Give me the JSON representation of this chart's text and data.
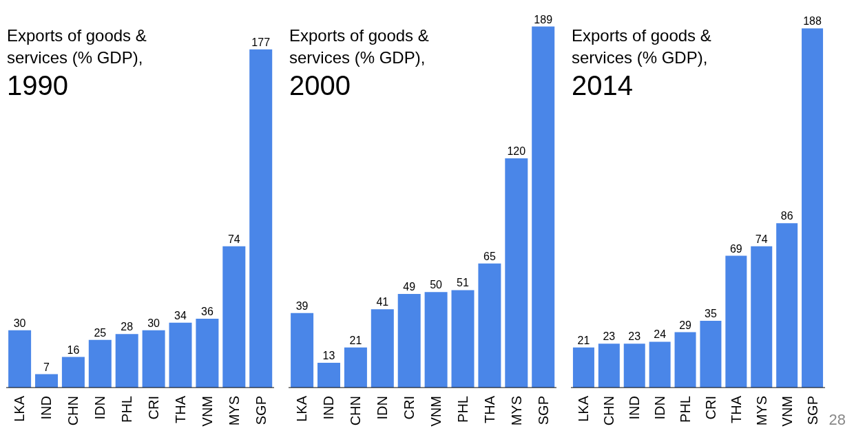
{
  "chart_data": [
    {
      "type": "bar",
      "title": "Exports of goods & services (% GDP),",
      "subtitle": "1990",
      "categories": [
        "LKA",
        "IND",
        "CHN",
        "IDN",
        "PHL",
        "CRI",
        "THA",
        "VNM",
        "MYS",
        "SGP"
      ],
      "values": [
        30,
        7,
        16,
        25,
        28,
        30,
        34,
        36,
        74,
        177
      ],
      "color": "#4a86e8",
      "data_labels": true,
      "ylim": [
        0,
        200
      ],
      "tick_labels": "x"
    },
    {
      "type": "bar",
      "title": "Exports of goods & services (% GDP),",
      "subtitle": "2000",
      "categories": [
        "LKA",
        "IND",
        "CHN",
        "IDN",
        "CRI",
        "VNM",
        "PHL",
        "THA",
        "MYS",
        "SGP"
      ],
      "values": [
        39,
        13,
        21,
        41,
        49,
        50,
        51,
        65,
        120,
        189
      ],
      "color": "#4a86e8",
      "data_labels": true,
      "ylim": [
        0,
        200
      ],
      "tick_labels": "x"
    },
    {
      "type": "bar",
      "title": "Exports of goods & services (% GDP),",
      "subtitle": "2014",
      "categories": [
        "LKA",
        "CHN",
        "IND",
        "IDN",
        "PHL",
        "CRI",
        "THA",
        "MYS",
        "VNM",
        "SGP"
      ],
      "values": [
        21,
        23,
        23,
        24,
        29,
        35,
        69,
        74,
        86,
        188
      ],
      "color": "#4a86e8",
      "data_labels": true,
      "ylim": [
        0,
        200
      ],
      "tick_labels": "x",
      "annotations": [
        "28"
      ]
    }
  ]
}
